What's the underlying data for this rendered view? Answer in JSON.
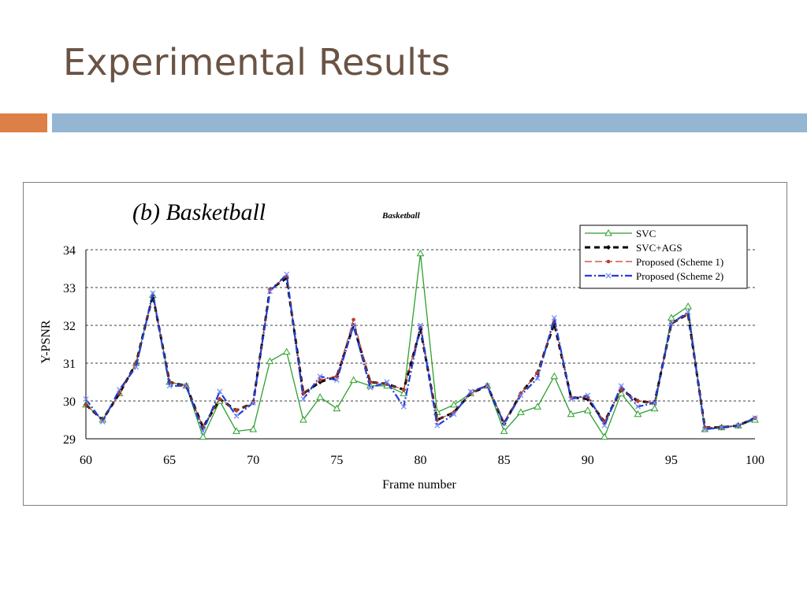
{
  "slide": {
    "title": "Experimental Results"
  },
  "colors": {
    "title": "#6b5344",
    "bar_orange": "#dd8047",
    "bar_blue": "#94b6d2",
    "svc": "#2ca02c",
    "svc_ags": "#000000",
    "scheme1": "#c0392b",
    "scheme2": "#1f3fd8",
    "scheme2_marker": "#7a8cf0"
  },
  "chart_data": {
    "type": "line",
    "title": "(b) Basketball",
    "subtitle": "Basketball",
    "xlabel": "Frame number",
    "ylabel": "Y-PSNR",
    "xlim": [
      60,
      100
    ],
    "ylim": [
      29,
      34
    ],
    "xticks": [
      60,
      65,
      70,
      75,
      80,
      85,
      90,
      95,
      100
    ],
    "yticks": [
      29,
      30,
      31,
      32,
      33,
      34
    ],
    "grid": "horizontal dashed",
    "legend_position": "top-right",
    "x": [
      60,
      61,
      62,
      63,
      64,
      65,
      66,
      67,
      68,
      69,
      70,
      71,
      72,
      73,
      74,
      75,
      76,
      77,
      78,
      79,
      80,
      81,
      82,
      83,
      84,
      85,
      86,
      87,
      88,
      89,
      90,
      91,
      92,
      93,
      94,
      95,
      96,
      97,
      98,
      99,
      100
    ],
    "series": [
      {
        "name": "SVC",
        "marker": "triangle",
        "values": [
          29.9,
          29.5,
          30.2,
          31.0,
          32.8,
          30.5,
          30.4,
          29.05,
          30.0,
          29.2,
          29.25,
          31.05,
          31.3,
          29.5,
          30.1,
          29.8,
          30.55,
          30.4,
          30.4,
          30.2,
          33.9,
          29.7,
          29.9,
          30.2,
          30.4,
          29.2,
          29.7,
          29.85,
          30.65,
          29.65,
          29.75,
          29.05,
          30.2,
          29.65,
          29.8,
          32.2,
          32.5,
          29.25,
          29.3,
          29.35,
          29.5
        ]
      },
      {
        "name": "SVC+AGS",
        "marker": "diamond",
        "values": [
          29.9,
          29.5,
          30.2,
          31.0,
          32.8,
          30.5,
          30.4,
          29.3,
          30.05,
          29.75,
          29.95,
          32.95,
          33.25,
          30.2,
          30.5,
          30.65,
          32.0,
          30.5,
          30.45,
          30.3,
          31.9,
          29.5,
          29.7,
          30.2,
          30.4,
          29.4,
          30.2,
          30.75,
          32.05,
          30.1,
          30.05,
          29.45,
          30.3,
          30.0,
          29.95,
          32.05,
          32.3,
          29.3,
          29.3,
          29.35,
          29.55
        ]
      },
      {
        "name": "Proposed (Scheme 1)",
        "marker": "dot",
        "values": [
          29.9,
          29.5,
          30.2,
          31.0,
          32.8,
          30.5,
          30.4,
          29.3,
          30.05,
          29.75,
          29.95,
          32.95,
          33.3,
          30.2,
          30.55,
          30.65,
          32.15,
          30.5,
          30.45,
          30.3,
          31.95,
          29.5,
          29.7,
          30.2,
          30.4,
          29.45,
          30.2,
          30.75,
          32.1,
          30.1,
          30.1,
          29.45,
          30.3,
          30.0,
          29.95,
          32.05,
          32.3,
          29.3,
          29.3,
          29.35,
          29.55
        ]
      },
      {
        "name": "Proposed (Scheme 2)",
        "marker": "x",
        "values": [
          30.05,
          29.45,
          30.3,
          30.9,
          32.85,
          30.4,
          30.4,
          29.2,
          30.25,
          29.6,
          29.95,
          32.9,
          33.35,
          30.05,
          30.65,
          30.55,
          32.0,
          30.35,
          30.5,
          29.85,
          32.0,
          29.35,
          29.65,
          30.25,
          30.4,
          29.4,
          30.15,
          30.6,
          32.2,
          30.05,
          30.15,
          29.35,
          30.4,
          29.85,
          29.95,
          32.05,
          32.35,
          29.25,
          29.3,
          29.35,
          29.55
        ]
      }
    ]
  }
}
